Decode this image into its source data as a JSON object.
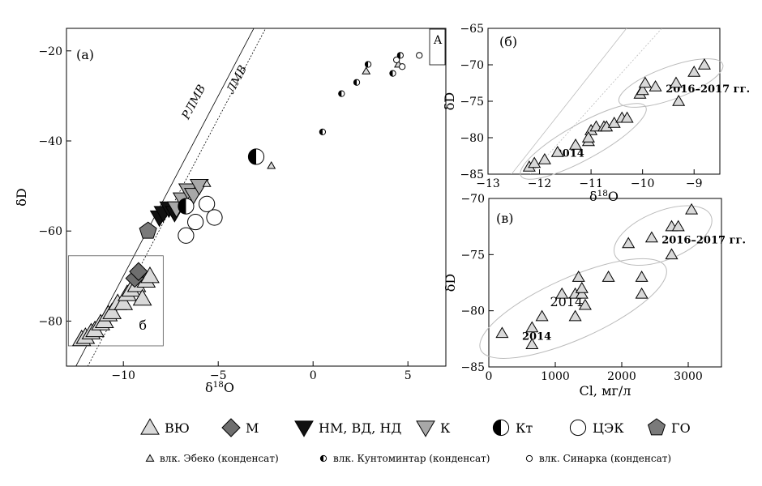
{
  "legend_main": [
    {
      "symbol": "triangle-up-light",
      "label": "ВЮ"
    },
    {
      "symbol": "diamond-dark",
      "label": "М"
    },
    {
      "symbol": "triangle-down-black",
      "label": "НМ, ВД, НД"
    },
    {
      "symbol": "triangle-down-grey",
      "label": "К"
    },
    {
      "symbol": "half-circle",
      "label": "Кт"
    },
    {
      "symbol": "circle-open",
      "label": "ЦЭК"
    },
    {
      "symbol": "pentagon-grey",
      "label": "ГО"
    }
  ],
  "legend_condensate": [
    {
      "symbol": "triangle-small",
      "label": "влк. Эбеко (конденсат)"
    },
    {
      "symbol": "half-circle-small",
      "label": "влк. Кунтоминтар (конденсат)"
    },
    {
      "symbol": "circle-small",
      "label": "влк. Синарка (конденсат)"
    }
  ],
  "chart_data": [
    {
      "id": "a",
      "type": "scatter",
      "panel_label": "(a)",
      "xlabel": "δ18O",
      "ylabel": "δD",
      "xlim": [
        -13,
        7
      ],
      "ylim": [
        -90,
        -15
      ],
      "x_ticks": [
        -10,
        -5,
        0,
        5
      ],
      "y_ticks": [
        -80,
        -60,
        -40,
        -20
      ],
      "lines": [
        {
          "name": "РЛМВ",
          "style": "solid",
          "slope": 8,
          "intercept": 10
        },
        {
          "name": "ЛМВ",
          "style": "dotted",
          "slope": 8,
          "intercept": 5
        }
      ],
      "inset_box_label": "б",
      "inset_box_x": [
        -12.9,
        -7.9
      ],
      "inset_box_y": [
        -85.5,
        -65.5
      ],
      "corner_box_label": "А",
      "series": [
        {
          "name": "ВЮ",
          "marker": "triangle-up-light",
          "points": [
            [
              -12.2,
              -84
            ],
            [
              -12.0,
              -83.5
            ],
            [
              -11.7,
              -82.5
            ],
            [
              -11.5,
              -82
            ],
            [
              -11.2,
              -80.5
            ],
            [
              -11.0,
              -80
            ],
            [
              -10.8,
              -78.5
            ],
            [
              -10.6,
              -78
            ],
            [
              -10.3,
              -76
            ],
            [
              -10.0,
              -76
            ],
            [
              -9.8,
              -74
            ],
            [
              -9.6,
              -73
            ],
            [
              -9.3,
              -72
            ],
            [
              -9.0,
              -75
            ],
            [
              -8.8,
              -71
            ],
            [
              -8.6,
              -70
            ]
          ]
        },
        {
          "name": "М",
          "marker": "diamond-dark",
          "points": [
            [
              -9.4,
              -70.5
            ],
            [
              -9.2,
              -69
            ]
          ]
        },
        {
          "name": "НМ, ВД, НД",
          "marker": "triangle-down-black",
          "points": [
            [
              -8.1,
              -57
            ],
            [
              -7.9,
              -56
            ],
            [
              -7.6,
              -55
            ],
            [
              -7.3,
              -56
            ]
          ]
        },
        {
          "name": "К",
          "marker": "triangle-down-grey",
          "points": [
            [
              -7.2,
              -55
            ],
            [
              -6.9,
              -53
            ],
            [
              -6.6,
              -51
            ],
            [
              -6.3,
              -52
            ],
            [
              -6.0,
              -50
            ]
          ]
        },
        {
          "name": "Кт",
          "marker": "half-circle",
          "points": [
            [
              -6.7,
              -54.5
            ],
            [
              -3.0,
              -43.5
            ]
          ]
        },
        {
          "name": "ЦЭК",
          "marker": "circle-open",
          "points": [
            [
              -6.7,
              -61
            ],
            [
              -6.2,
              -58
            ],
            [
              -5.6,
              -54
            ],
            [
              -5.2,
              -57
            ]
          ]
        },
        {
          "name": "ГО",
          "marker": "pentagon-grey",
          "points": [
            [
              -8.7,
              -60
            ]
          ]
        },
        {
          "name": "влк. Эбеко (конденсат)",
          "marker": "triangle-small",
          "points": [
            [
              -5.6,
              -49.5
            ],
            [
              -2.2,
              -45.5
            ],
            [
              2.8,
              -24.5
            ],
            [
              4.5,
              -23
            ]
          ]
        },
        {
          "name": "влк. Кунтоминтар (конденсат)",
          "marker": "half-circle-small",
          "points": [
            [
              0.5,
              -38
            ],
            [
              1.5,
              -29.5
            ],
            [
              2.3,
              -27
            ],
            [
              2.9,
              -23
            ],
            [
              4.2,
              -25
            ],
            [
              4.6,
              -21
            ]
          ]
        },
        {
          "name": "влк. Синарка (конденсат)",
          "marker": "circle-small",
          "points": [
            [
              4.4,
              -22
            ],
            [
              4.7,
              -23.5
            ],
            [
              5.6,
              -21
            ]
          ]
        }
      ]
    },
    {
      "id": "b",
      "type": "scatter",
      "panel_label": "(б)",
      "xlabel": "δ18O",
      "ylabel": "δD",
      "xlim": [
        -13,
        -8.5
      ],
      "ylim": [
        -85,
        -65
      ],
      "x_ticks": [
        -13,
        -12,
        -11,
        -10,
        -9
      ],
      "y_ticks": [
        -85,
        -80,
        -75,
        -70,
        -65
      ],
      "annotations": [
        "2014",
        "2016–2017 гг."
      ],
      "series": [
        {
          "name": "2014",
          "marker": "triangle-up-light",
          "points": [
            [
              -12.2,
              -84
            ],
            [
              -12.1,
              -83.5
            ],
            [
              -11.9,
              -83
            ],
            [
              -11.65,
              -82
            ],
            [
              -11.3,
              -81
            ],
            [
              -11.05,
              -80.5
            ],
            [
              -11.0,
              -79
            ],
            [
              -10.9,
              -78.5
            ],
            [
              -10.75,
              -78.5
            ],
            [
              -10.7,
              -78.5
            ],
            [
              -10.55,
              -78
            ],
            [
              -10.4,
              -77.3
            ],
            [
              -10.3,
              -77.3
            ],
            [
              -11.05,
              -80
            ]
          ]
        },
        {
          "name": "2016–2017 гг.",
          "marker": "triangle-up-light",
          "points": [
            [
              -10.05,
              -74
            ],
            [
              -10.0,
              -73.5
            ],
            [
              -9.95,
              -72.5
            ],
            [
              -9.75,
              -73
            ],
            [
              -9.35,
              -72.5
            ],
            [
              -9.3,
              -75
            ],
            [
              -9.0,
              -71
            ],
            [
              -8.8,
              -70
            ]
          ]
        }
      ]
    },
    {
      "id": "c",
      "type": "scatter",
      "panel_label": "(в)",
      "xlabel": "Cl, мг/л",
      "ylabel": "δD",
      "xlim": [
        0,
        3500
      ],
      "ylim": [
        -85,
        -70
      ],
      "x_ticks": [
        0,
        1000,
        2000,
        3000
      ],
      "y_ticks": [
        -85,
        -80,
        -75,
        -70
      ],
      "annotations": [
        "2014",
        "2014",
        "2016–2017 гг."
      ],
      "series": [
        {
          "name": "2014",
          "marker": "triangle-up-light",
          "points": [
            [
              200,
              -82
            ],
            [
              650,
              -81.5
            ],
            [
              650,
              -83
            ],
            [
              800,
              -80.5
            ],
            [
              1100,
              -78.5
            ],
            [
              1300,
              -78.5
            ],
            [
              1350,
              -77
            ],
            [
              1300,
              -80.5
            ],
            [
              1400,
              -78.5
            ],
            [
              1450,
              -79.5
            ],
            [
              1800,
              -77
            ],
            [
              2300,
              -77
            ],
            [
              2300,
              -78.5
            ],
            [
              1400,
              -78
            ]
          ]
        },
        {
          "name": "2016–2017 гг.",
          "marker": "triangle-up-light",
          "points": [
            [
              2100,
              -74
            ],
            [
              2450,
              -73.5
            ],
            [
              2750,
              -75
            ],
            [
              2750,
              -72.5
            ],
            [
              2850,
              -72.5
            ],
            [
              3050,
              -71
            ]
          ]
        }
      ]
    }
  ]
}
